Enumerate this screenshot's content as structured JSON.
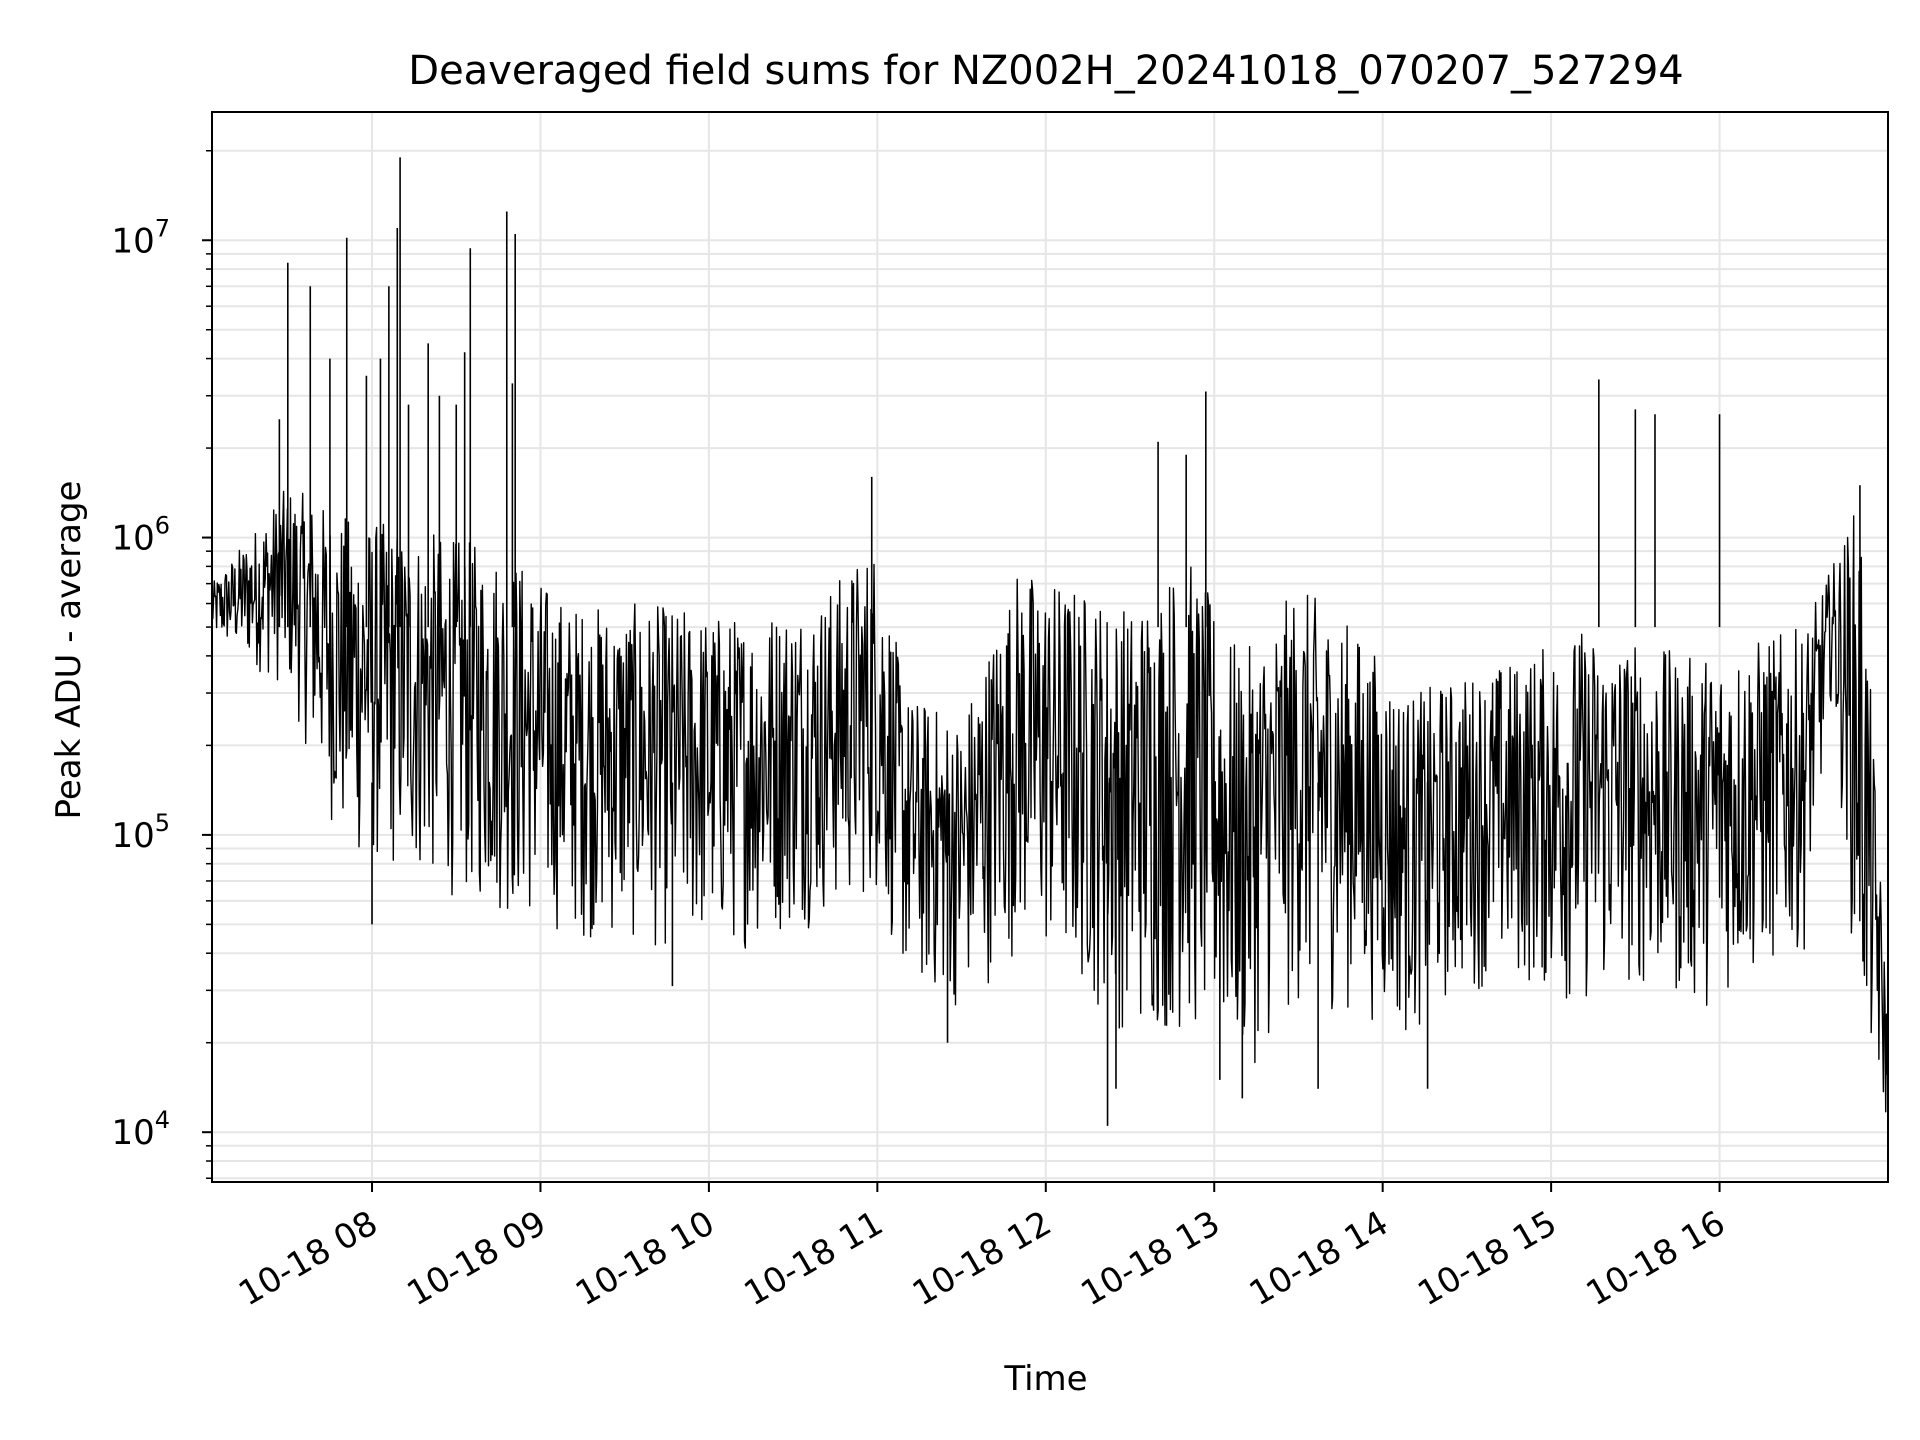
{
  "chart_data": {
    "type": "line",
    "title": "Deaveraged field sums for NZ002H_20241018_070207_527294",
    "xlabel": "Time",
    "ylabel": "Peak ADU - average",
    "xlim": [
      "2024-10-18 07:03",
      "2024-10-18 17:00"
    ],
    "ylim": [
      6800,
      27000000
    ],
    "yscale": "log",
    "grid": true,
    "line_color": "#000000",
    "x_ticks": [
      {
        "value": "2024-10-18 08:00",
        "label": "10-18 08"
      },
      {
        "value": "2024-10-18 09:00",
        "label": "10-18 09"
      },
      {
        "value": "2024-10-18 10:00",
        "label": "10-18 10"
      },
      {
        "value": "2024-10-18 11:00",
        "label": "10-18 11"
      },
      {
        "value": "2024-10-18 12:00",
        "label": "10-18 12"
      },
      {
        "value": "2024-10-18 13:00",
        "label": "10-18 13"
      },
      {
        "value": "2024-10-18 14:00",
        "label": "10-18 14"
      },
      {
        "value": "2024-10-18 15:00",
        "label": "10-18 15"
      },
      {
        "value": "2024-10-18 16:00",
        "label": "10-18 16"
      }
    ],
    "y_ticks": [
      {
        "value": 10000,
        "base": "10",
        "exp": "4"
      },
      {
        "value": 100000,
        "base": "10",
        "exp": "5"
      },
      {
        "value": 1000000,
        "base": "10",
        "exp": "6"
      },
      {
        "value": 10000000,
        "base": "10",
        "exp": "7"
      }
    ],
    "series": [
      {
        "x": [
          "2024-10-18 07:03",
          "2024-10-18 07:10",
          "2024-10-18 07:15",
          "2024-10-18 07:20",
          "2024-10-18 07:25",
          "2024-10-18 07:30",
          "2024-10-18 07:35",
          "2024-10-18 07:40",
          "2024-10-18 07:45",
          "2024-10-18 07:50",
          "2024-10-18 07:55",
          "2024-10-18 08:00",
          "2024-10-18 08:05",
          "2024-10-18 08:10",
          "2024-10-18 08:15",
          "2024-10-18 08:20",
          "2024-10-18 08:25",
          "2024-10-18 08:30",
          "2024-10-18 08:35",
          "2024-10-18 08:40",
          "2024-10-18 08:45",
          "2024-10-18 08:50",
          "2024-10-18 08:55",
          "2024-10-18 09:00",
          "2024-10-18 09:10",
          "2024-10-18 09:20",
          "2024-10-18 09:30",
          "2024-10-18 09:40",
          "2024-10-18 09:50",
          "2024-10-18 10:00",
          "2024-10-18 10:10",
          "2024-10-18 10:20",
          "2024-10-18 10:30",
          "2024-10-18 10:40",
          "2024-10-18 10:50",
          "2024-10-18 11:00",
          "2024-10-18 11:10",
          "2024-10-18 11:20",
          "2024-10-18 11:30",
          "2024-10-18 11:40",
          "2024-10-18 11:50",
          "2024-10-18 12:00",
          "2024-10-18 12:10",
          "2024-10-18 12:20",
          "2024-10-18 12:30",
          "2024-10-18 12:40",
          "2024-10-18 12:50",
          "2024-10-18 13:00",
          "2024-10-18 13:10",
          "2024-10-18 13:20",
          "2024-10-18 13:30",
          "2024-10-18 13:40",
          "2024-10-18 13:50",
          "2024-10-18 14:00",
          "2024-10-18 14:10",
          "2024-10-18 14:20",
          "2024-10-18 14:30",
          "2024-10-18 14:40",
          "2024-10-18 14:50",
          "2024-10-18 15:00",
          "2024-10-18 15:10",
          "2024-10-18 15:20",
          "2024-10-18 15:30",
          "2024-10-18 15:40",
          "2024-10-18 15:50",
          "2024-10-18 16:00",
          "2024-10-18 16:10",
          "2024-10-18 16:20",
          "2024-10-18 16:30",
          "2024-10-18 16:40",
          "2024-10-18 16:45",
          "2024-10-18 16:50",
          "2024-10-18 16:55",
          "2024-10-18 17:00"
        ],
        "y": [
          500000,
          550000,
          1000000,
          600000,
          300000,
          700000,
          350000,
          250000,
          600000,
          300000,
          200000,
          250000,
          300000,
          200000,
          250000,
          300000,
          400000,
          300000,
          250000,
          300000,
          250000,
          200000,
          250000,
          300000,
          200000,
          150000,
          180000,
          150000,
          170000,
          150000,
          160000,
          170000,
          150000,
          180000,
          200000,
          250000,
          60000,
          50000,
          90000,
          300000,
          250000,
          180000,
          120000,
          150000,
          130000,
          120000,
          140000,
          100000,
          90000,
          150000,
          130000,
          70000,
          90000,
          120000,
          110000,
          100000,
          130000,
          120000,
          100000,
          110000,
          90000,
          80000,
          100000,
          90000,
          70000,
          75000,
          80000,
          150000,
          200000,
          350000,
          800000,
          900000,
          30000,
          10000
        ],
        "envelope": {
          "x": [
            "2024-10-18 07:03",
            "2024-10-18 07:30",
            "2024-10-18 07:50",
            "2024-10-18 08:10",
            "2024-10-18 08:30",
            "2024-10-18 08:50",
            "2024-10-18 09:10",
            "2024-10-18 09:40",
            "2024-10-18 10:10",
            "2024-10-18 10:40",
            "2024-10-18 11:00",
            "2024-10-18 11:10",
            "2024-10-18 11:30",
            "2024-10-18 11:50",
            "2024-10-18 12:10",
            "2024-10-18 12:30",
            "2024-10-18 12:50",
            "2024-10-18 13:10",
            "2024-10-18 13:30",
            "2024-10-18 13:50",
            "2024-10-18 14:10",
            "2024-10-18 14:30",
            "2024-10-18 14:50",
            "2024-10-18 15:10",
            "2024-10-18 15:30",
            "2024-10-18 15:50",
            "2024-10-18 16:10",
            "2024-10-18 16:30",
            "2024-10-18 16:40",
            "2024-10-18 16:50",
            "2024-10-18 17:00"
          ],
          "low": [
            450000,
            300000,
            80000,
            70000,
            60000,
            50000,
            45000,
            40000,
            40000,
            50000,
            60000,
            30000,
            25000,
            40000,
            30000,
            20000,
            20000,
            15000,
            25000,
            25000,
            20000,
            30000,
            30000,
            25000,
            30000,
            25000,
            30000,
            40000,
            300000,
            20000,
            9800
          ],
          "high": [
            700000,
            1500000,
            1200000,
            1100000,
            1000000,
            900000,
            600000,
            600000,
            550000,
            650000,
            1000000,
            300000,
            250000,
            800000,
            700000,
            600000,
            900000,
            400000,
            700000,
            500000,
            300000,
            350000,
            400000,
            500000,
            450000,
            400000,
            450000,
            500000,
            800000,
            1400000,
            25000
          ]
        }
      }
    ],
    "spikes": [
      {
        "x": "2024-10-18 07:27",
        "y": 2500000
      },
      {
        "x": "2024-10-18 07:30",
        "y": 8400000
      },
      {
        "x": "2024-10-18 07:38",
        "y": 7000000
      },
      {
        "x": "2024-10-18 07:45",
        "y": 4000000
      },
      {
        "x": "2024-10-18 07:51",
        "y": 10200000
      },
      {
        "x": "2024-10-18 07:58",
        "y": 3500000
      },
      {
        "x": "2024-10-18 08:03",
        "y": 4000000
      },
      {
        "x": "2024-10-18 08:06",
        "y": 7000000
      },
      {
        "x": "2024-10-18 08:09",
        "y": 11000000
      },
      {
        "x": "2024-10-18 08:10",
        "y": 19000000
      },
      {
        "x": "2024-10-18 08:13",
        "y": 2800000
      },
      {
        "x": "2024-10-18 08:20",
        "y": 4500000
      },
      {
        "x": "2024-10-18 08:24",
        "y": 3000000
      },
      {
        "x": "2024-10-18 08:30",
        "y": 2800000
      },
      {
        "x": "2024-10-18 08:33",
        "y": 4200000
      },
      {
        "x": "2024-10-18 08:35",
        "y": 9400000
      },
      {
        "x": "2024-10-18 08:48",
        "y": 12500000
      },
      {
        "x": "2024-10-18 08:51",
        "y": 10500000
      },
      {
        "x": "2024-10-18 08:50",
        "y": 3300000
      },
      {
        "x": "2024-10-18 10:58",
        "y": 1600000
      },
      {
        "x": "2024-10-18 12:40",
        "y": 2100000
      },
      {
        "x": "2024-10-18 12:50",
        "y": 1900000
      },
      {
        "x": "2024-10-18 12:57",
        "y": 3100000
      },
      {
        "x": "2024-10-18 15:17",
        "y": 3400000
      },
      {
        "x": "2024-10-18 15:30",
        "y": 2700000
      },
      {
        "x": "2024-10-18 15:37",
        "y": 2600000
      },
      {
        "x": "2024-10-18 16:00",
        "y": 2600000
      },
      {
        "x": "2024-10-18 16:50",
        "y": 1500000
      }
    ],
    "dips": [
      {
        "x": "2024-10-18 12:22",
        "y": 10500
      },
      {
        "x": "2024-10-18 12:25",
        "y": 14000
      },
      {
        "x": "2024-10-18 13:10",
        "y": 13000
      },
      {
        "x": "2024-10-18 13:02",
        "y": 15000
      },
      {
        "x": "2024-10-18 13:37",
        "y": 14000
      },
      {
        "x": "2024-10-18 14:16",
        "y": 14000
      },
      {
        "x": "2024-10-18 11:25",
        "y": 20000
      },
      {
        "x": "2024-10-18 08:00",
        "y": 50000
      },
      {
        "x": "2024-10-18 09:47",
        "y": 31000
      }
    ]
  }
}
